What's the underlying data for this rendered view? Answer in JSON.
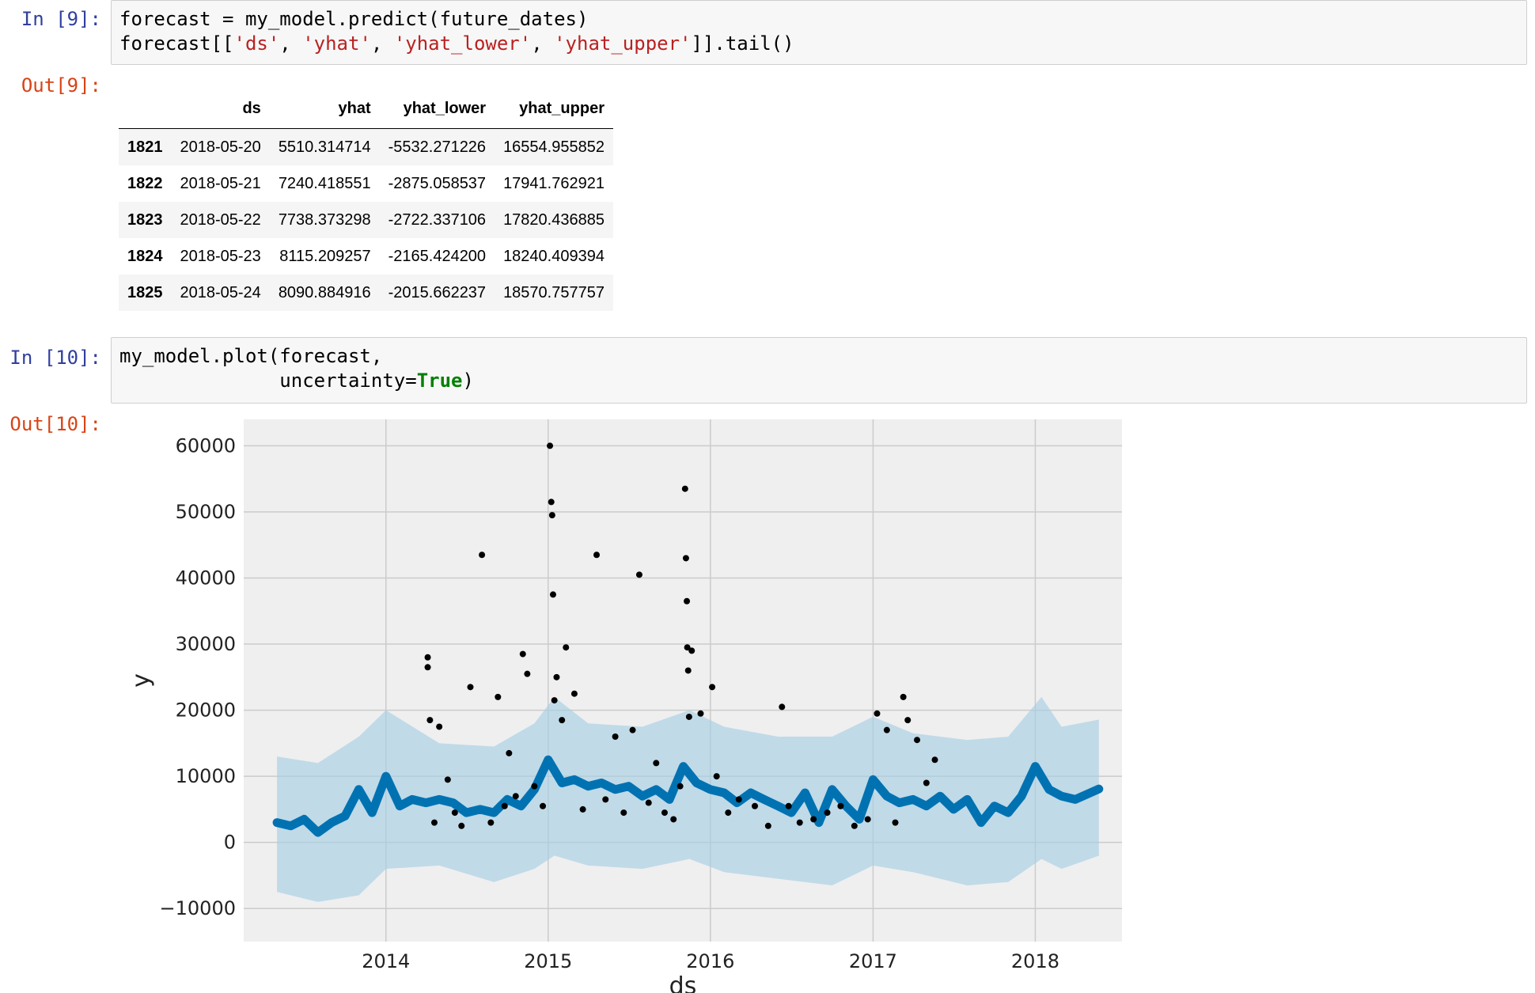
{
  "cells": [
    {
      "in_prompt": "In [9]:",
      "code_lines": [
        [
          {
            "t": "forecast = my_model.predict(future_dates)",
            "c": ""
          }
        ],
        [
          {
            "t": "forecast[[",
            "c": ""
          },
          {
            "t": "'ds'",
            "c": "str"
          },
          {
            "t": ", ",
            "c": ""
          },
          {
            "t": "'yhat'",
            "c": "str"
          },
          {
            "t": ", ",
            "c": ""
          },
          {
            "t": "'yhat_lower'",
            "c": "str"
          },
          {
            "t": ", ",
            "c": ""
          },
          {
            "t": "'yhat_upper'",
            "c": "str"
          },
          {
            "t": "]].tail()",
            "c": ""
          }
        ]
      ],
      "out_prompt": "Out[9]:",
      "table": {
        "columns": [
          "",
          "ds",
          "yhat",
          "yhat_lower",
          "yhat_upper"
        ],
        "rows": [
          [
            "1821",
            "2018-05-20",
            "5510.314714",
            "-5532.271226",
            "16554.955852"
          ],
          [
            "1822",
            "2018-05-21",
            "7240.418551",
            "-2875.058537",
            "17941.762921"
          ],
          [
            "1823",
            "2018-05-22",
            "7738.373298",
            "-2722.337106",
            "17820.436885"
          ],
          [
            "1824",
            "2018-05-23",
            "8115.209257",
            "-2165.424200",
            "18240.409394"
          ],
          [
            "1825",
            "2018-05-24",
            "8090.884916",
            "-2015.662237",
            "18570.757757"
          ]
        ]
      }
    },
    {
      "in_prompt": "In [10]:",
      "code_lines": [
        [
          {
            "t": "my_model.plot(forecast,",
            "c": ""
          }
        ],
        [
          {
            "t": "              uncertainty=",
            "c": ""
          },
          {
            "t": "True",
            "c": "kw"
          },
          {
            "t": ")",
            "c": ""
          }
        ]
      ],
      "out_prompt": "Out[10]:"
    }
  ],
  "chart_data": {
    "type": "line",
    "title": "",
    "xlabel": "ds",
    "ylabel": "y",
    "x_ticks": [
      "2014",
      "2015",
      "2016",
      "2017",
      "2018"
    ],
    "y_ticks": [
      60000,
      50000,
      40000,
      30000,
      20000,
      10000,
      0,
      -10000
    ],
    "y_tick_labels": [
      "60000",
      "50000",
      "40000",
      "30000",
      "20000",
      "10000",
      "0",
      "−10000"
    ],
    "xlim": [
      "2013-02-15",
      "2018-07-15"
    ],
    "ylim": [
      -15000,
      64000
    ],
    "grid": true,
    "background": "#efefef",
    "colors": {
      "forecast": "#0072b2",
      "band": "#a6cee3",
      "points": "#000000"
    },
    "series": [
      {
        "role": "forecast yhat",
        "x": [
          "2013-05-01",
          "2013-06-01",
          "2013-07-01",
          "2013-08-01",
          "2013-09-01",
          "2013-10-01",
          "2013-11-01",
          "2013-12-01",
          "2014-01-01",
          "2014-02-01",
          "2014-03-01",
          "2014-04-01",
          "2014-05-01",
          "2014-06-01",
          "2014-07-01",
          "2014-08-01",
          "2014-09-01",
          "2014-10-01",
          "2014-11-01",
          "2014-12-01",
          "2015-01-01",
          "2015-02-01",
          "2015-03-01",
          "2015-04-01",
          "2015-05-01",
          "2015-06-01",
          "2015-07-01",
          "2015-08-01",
          "2015-09-01",
          "2015-10-01",
          "2015-11-01",
          "2015-12-01",
          "2016-01-01",
          "2016-02-01",
          "2016-03-01",
          "2016-04-01",
          "2016-05-01",
          "2016-06-01",
          "2016-07-01",
          "2016-08-01",
          "2016-09-01",
          "2016-10-01",
          "2016-11-01",
          "2016-12-01",
          "2017-01-01",
          "2017-02-01",
          "2017-03-01",
          "2017-04-01",
          "2017-05-01",
          "2017-06-01",
          "2017-07-01",
          "2017-08-01",
          "2017-09-01",
          "2017-10-01",
          "2017-11-01",
          "2017-12-01",
          "2018-01-01",
          "2018-02-01",
          "2018-03-01",
          "2018-04-01",
          "2018-05-24"
        ],
        "y": [
          3000,
          2500,
          3500,
          1500,
          3000,
          4000,
          8000,
          4500,
          10000,
          5500,
          6500,
          6000,
          6500,
          6000,
          4500,
          5000,
          4500,
          6500,
          5500,
          8000,
          12500,
          9000,
          9500,
          8500,
          9000,
          8000,
          8500,
          7000,
          8000,
          6500,
          11500,
          9000,
          8000,
          7500,
          6000,
          7500,
          6500,
          5500,
          4500,
          7500,
          3000,
          8000,
          5500,
          3500,
          9500,
          7000,
          6000,
          6500,
          5500,
          7000,
          5000,
          6500,
          3000,
          5500,
          4500,
          7000,
          11500,
          8000,
          7000,
          6500,
          8090
        ]
      },
      {
        "role": "yhat_upper",
        "x": [
          "2013-05-01",
          "2013-08-01",
          "2013-11-01",
          "2014-01-01",
          "2014-05-01",
          "2014-09-01",
          "2014-12-01",
          "2015-01-15",
          "2015-04-01",
          "2015-08-01",
          "2015-11-15",
          "2016-02-01",
          "2016-06-01",
          "2016-10-01",
          "2017-01-01",
          "2017-04-01",
          "2017-08-01",
          "2017-11-01",
          "2018-01-15",
          "2018-03-01",
          "2018-05-24"
        ],
        "y": [
          13000,
          12000,
          16000,
          20000,
          15000,
          14500,
          18000,
          22000,
          18000,
          17500,
          20000,
          17500,
          16000,
          16000,
          19000,
          16500,
          15500,
          16000,
          22000,
          17500,
          18570
        ]
      },
      {
        "role": "yhat_lower",
        "x": [
          "2013-05-01",
          "2013-08-01",
          "2013-11-01",
          "2014-01-01",
          "2014-05-01",
          "2014-09-01",
          "2014-12-01",
          "2015-01-15",
          "2015-04-01",
          "2015-08-01",
          "2015-11-15",
          "2016-02-01",
          "2016-06-01",
          "2016-10-01",
          "2017-01-01",
          "2017-04-01",
          "2017-08-01",
          "2017-11-01",
          "2018-01-15",
          "2018-03-01",
          "2018-05-24"
        ],
        "y": [
          -7500,
          -9000,
          -8000,
          -4000,
          -3500,
          -6000,
          -4000,
          -2000,
          -3500,
          -4000,
          -2500,
          -4500,
          -5500,
          -6500,
          -3500,
          -4500,
          -6500,
          -6000,
          -2500,
          -4000,
          -2015
        ]
      },
      {
        "role": "observed",
        "x": [
          "2014-04-05",
          "2014-04-05",
          "2014-04-10",
          "2014-04-20",
          "2014-05-01",
          "2014-05-20",
          "2014-06-05",
          "2014-06-20",
          "2014-07-10",
          "2014-08-05",
          "2014-08-25",
          "2014-09-10",
          "2014-09-25",
          "2014-10-05",
          "2014-10-20",
          "2014-11-05",
          "2014-11-15",
          "2014-12-01",
          "2014-12-20",
          "2015-01-05",
          "2015-01-08",
          "2015-01-10",
          "2015-01-12",
          "2015-01-15",
          "2015-01-20",
          "2015-02-01",
          "2015-02-10",
          "2015-03-01",
          "2015-03-20",
          "2015-04-20",
          "2015-05-10",
          "2015-06-01",
          "2015-06-20",
          "2015-07-10",
          "2015-07-25",
          "2015-08-15",
          "2015-09-01",
          "2015-09-20",
          "2015-10-10",
          "2015-10-25",
          "2015-11-05",
          "2015-11-07",
          "2015-11-09",
          "2015-11-10",
          "2015-11-12",
          "2015-11-14",
          "2015-11-20",
          "2015-12-10",
          "2016-01-05",
          "2016-01-15",
          "2016-02-10",
          "2016-03-05",
          "2016-04-10",
          "2016-05-10",
          "2016-06-10",
          "2016-06-25",
          "2016-07-20",
          "2016-08-20",
          "2016-09-20",
          "2016-10-20",
          "2016-11-20",
          "2016-12-20",
          "2017-01-10",
          "2017-02-01",
          "2017-02-20",
          "2017-03-10",
          "2017-03-20",
          "2017-04-10",
          "2017-05-01",
          "2017-05-20"
        ],
        "y": [
          28000,
          26500,
          18500,
          3000,
          17500,
          9500,
          4500,
          2500,
          23500,
          43500,
          3000,
          22000,
          5500,
          13500,
          7000,
          28500,
          25500,
          8500,
          5500,
          60000,
          51500,
          49500,
          37500,
          21500,
          25000,
          18500,
          29500,
          22500,
          5000,
          43500,
          6500,
          16000,
          4500,
          17000,
          40500,
          6000,
          12000,
          4500,
          3500,
          8500,
          53500,
          43000,
          36500,
          29500,
          26000,
          19000,
          29000,
          19500,
          23500,
          10000,
          4500,
          6500,
          5500,
          2500,
          20500,
          5500,
          3000,
          3500,
          4500,
          5500,
          2500,
          3500,
          19500,
          17000,
          3000,
          22000,
          18500,
          15500,
          9000,
          12500
        ]
      }
    ]
  }
}
